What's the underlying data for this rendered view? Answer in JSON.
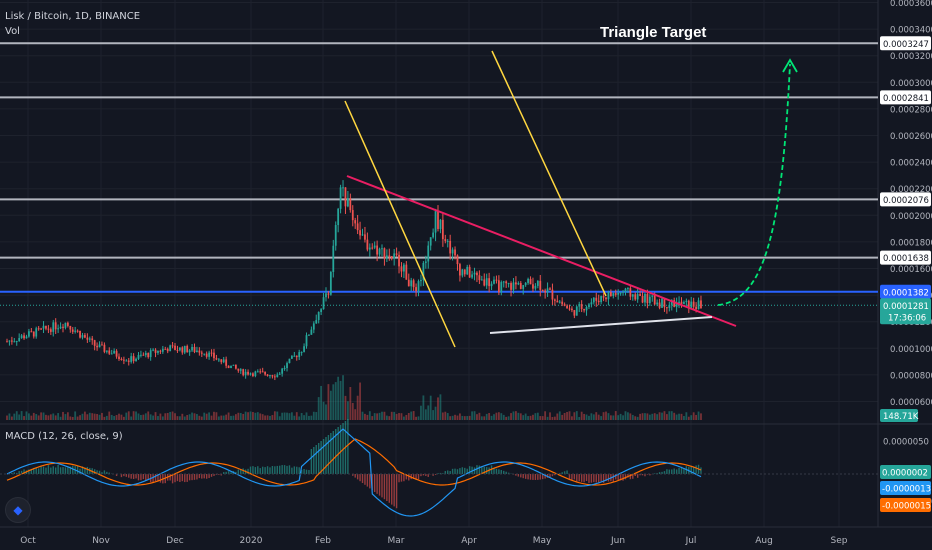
{
  "header": {
    "symbol": "Lisk / Bitcoin, 1D, BINANCE",
    "vol_label": "Vol",
    "annotation": "Triangle Target"
  },
  "price_axis": {
    "ticks": [
      "0.0003600",
      "0.0003400",
      "0.0003200",
      "0.0003000",
      "0.0002800",
      "0.0002600",
      "0.0002400",
      "0.0002200",
      "0.0002000",
      "0.0001800",
      "0.0001600",
      "0.0001400",
      "0.0001200",
      "0.0001000",
      "0.0000800",
      "0.0000600"
    ],
    "level_labels": [
      "0.0003247",
      "0.0002841",
      "0.0002076",
      "0.0001638",
      "0.0001382"
    ],
    "current_price": "0.0001281",
    "countdown": "17:36:06",
    "volume_label": "148.71K"
  },
  "macd": {
    "label": "MACD (12, 26, close, 9)",
    "ticks": [
      "0.0000050",
      "-0.0000050"
    ],
    "hist_label": "0.0000002",
    "macd_label": "-0.0000013",
    "signal_label": "-0.0000015"
  },
  "time_axis": {
    "labels": [
      "Oct",
      "Nov",
      "Dec",
      "2020",
      "Feb",
      "Mar",
      "Apr",
      "May",
      "Jun",
      "Jul",
      "Aug",
      "Sep"
    ]
  },
  "colors": {
    "background": "#131722",
    "up": "#26a69a",
    "down": "#ef5350",
    "level_line": "#b2b5be",
    "support_line": "#2962ff",
    "trend_down": "#e91e63",
    "yellow": "#ffd740",
    "target_arrow": "#00e676",
    "macd_line": "#2196f3",
    "signal_line": "#ff6d00"
  },
  "chart_data": {
    "type": "candlestick",
    "title": "Lisk / Bitcoin, 1D, BINANCE",
    "x_range": [
      "Sep",
      "Sep"
    ],
    "ylim": [
      5e-05,
      0.00037
    ],
    "horizontal_levels": [
      0.0003247,
      0.0002841,
      0.0002076,
      0.0001638,
      0.0001382
    ],
    "close_path": [
      [
        "2019-09-26",
        0.000101
      ],
      [
        "2019-10-10",
        0.000109
      ],
      [
        "2019-10-20",
        0.000115
      ],
      [
        "2019-11-01",
        9.8e-05
      ],
      [
        "2019-11-15",
        8.7e-05
      ],
      [
        "2019-12-01",
        9.6e-05
      ],
      [
        "2019-12-15",
        9.4e-05
      ],
      [
        "2019-12-31",
        7.8e-05
      ],
      [
        "2020-01-15",
        7.6e-05
      ],
      [
        "2020-01-25",
        9.5e-05
      ],
      [
        "2020-02-05",
        0.00014
      ],
      [
        "2020-02-10",
        0.000215
      ],
      [
        "2020-02-20",
        0.000175
      ],
      [
        "2020-03-05",
        0.000162
      ],
      [
        "2020-03-12",
        0.000135
      ],
      [
        "2020-03-20",
        0.000195
      ],
      [
        "2020-03-30",
        0.000155
      ],
      [
        "2020-04-15",
        0.000142
      ],
      [
        "2020-05-01",
        0.000145
      ],
      [
        "2020-05-15",
        0.000123
      ],
      [
        "2020-05-28",
        0.000135
      ],
      [
        "2020-06-05",
        0.000138
      ],
      [
        "2020-06-20",
        0.00013
      ],
      [
        "2020-07-05",
        0.0001281
      ]
    ],
    "volume_last": "148.71K",
    "macd": {
      "params": "12, 26, close, 9",
      "histogram": 2e-07,
      "macd": -1.3e-06,
      "signal": -1.5e-06
    }
  }
}
